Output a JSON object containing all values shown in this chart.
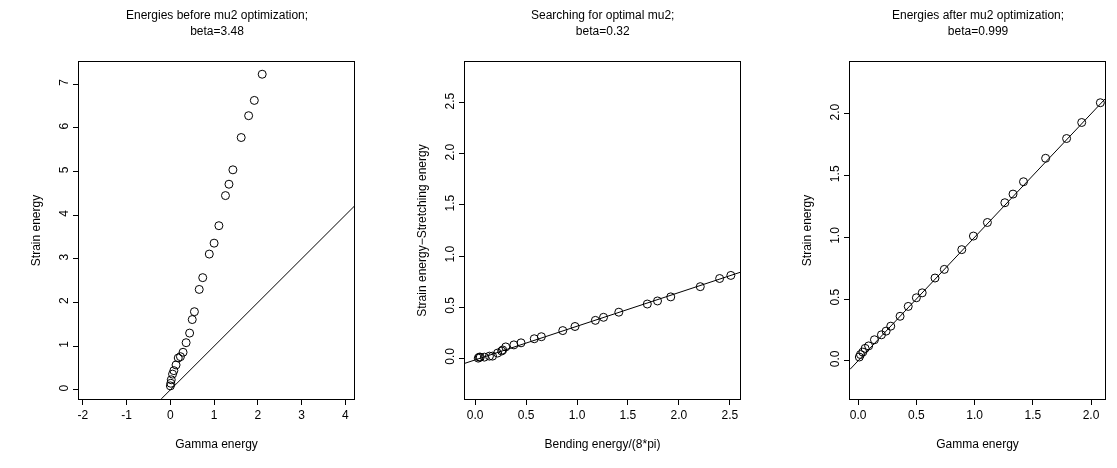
{
  "chart_data": [
    {
      "type": "scatter",
      "title": "Energies before mu2 optimization;\nbeta=3.48",
      "xlabel": "Gamma energy",
      "ylabel": "Strain energy",
      "xlim": [
        -2.09,
        4.2
      ],
      "ylim": [
        -0.21,
        7.51
      ],
      "xticks": [
        -2,
        -1,
        0,
        1,
        2,
        3,
        4
      ],
      "yticks": [
        0,
        1,
        2,
        3,
        4,
        5,
        6,
        7
      ],
      "series": [
        {
          "color": "#000000",
          "marker": "circle",
          "x": [
            2.1,
            1.92,
            1.79,
            1.62,
            1.43,
            1.34,
            1.26,
            1.11,
            1.0,
            0.89,
            0.74,
            0.66,
            0.55,
            0.5,
            0.44,
            0.36,
            0.29,
            0.23,
            0.18,
            0.13,
            0.08,
            0.05,
            0.02,
            0.01,
            0.0
          ],
          "values": [
            7.23,
            6.63,
            6.28,
            5.78,
            5.04,
            4.71,
            4.45,
            3.76,
            3.36,
            3.11,
            2.57,
            2.3,
            1.79,
            1.61,
            1.3,
            1.08,
            0.86,
            0.76,
            0.73,
            0.57,
            0.44,
            0.36,
            0.23,
            0.15,
            0.09
          ]
        },
        {
          "type": "line",
          "color": "#000000",
          "x": [
            -0.21,
            4.2
          ],
          "values": [
            -0.21,
            4.2
          ]
        }
      ]
    },
    {
      "type": "scatter",
      "title": "Searching for optimal mu2;\nbeta=0.32",
      "xlabel": "Bending energy/(8*pi)",
      "ylabel": "Strain energy−Stretching energy",
      "xlim": [
        -0.1,
        2.6
      ],
      "ylim": [
        -0.4,
        2.9
      ],
      "xticks": [
        {
          "value": 0,
          "label": "0.0"
        },
        0.5,
        {
          "value": 1,
          "label": "1.0"
        },
        1.5,
        {
          "value": 2,
          "label": "2.0"
        },
        2.5
      ],
      "yticks": [
        {
          "value": 0,
          "label": "0.0"
        },
        0.5,
        {
          "value": 1,
          "label": "1.0"
        },
        1.5,
        {
          "value": 2,
          "label": "2.0"
        },
        2.5
      ],
      "series": [
        {
          "color": "#000000",
          "marker": "circle",
          "x": [
            2.51,
            2.4,
            2.21,
            1.92,
            1.79,
            1.69,
            1.41,
            1.26,
            1.18,
            0.98,
            0.86,
            0.65,
            0.58,
            0.45,
            0.38,
            0.3,
            0.27,
            0.26,
            0.22,
            0.17,
            0.14,
            0.09,
            0.05,
            0.03,
            0.04
          ],
          "values": [
            0.81,
            0.78,
            0.7,
            0.6,
            0.56,
            0.53,
            0.45,
            0.4,
            0.37,
            0.31,
            0.27,
            0.21,
            0.19,
            0.15,
            0.13,
            0.11,
            0.08,
            0.07,
            0.05,
            0.02,
            0.02,
            0.01,
            0.01,
            0.0,
            0.01
          ]
        },
        {
          "type": "line",
          "color": "#000000",
          "x": [
            -0.1,
            2.6
          ],
          "values": [
            -0.05,
            0.84
          ]
        }
      ]
    },
    {
      "type": "scatter",
      "title": "Energies after mu2 optimization;\nbeta=0.999",
      "xlabel": "Gamma energy",
      "ylabel": "Strain energy",
      "xlim": [
        -0.07,
        2.12
      ],
      "ylim": [
        -0.31,
        2.42
      ],
      "xticks": [
        {
          "value": 0,
          "label": "0.0"
        },
        0.5,
        {
          "value": 1,
          "label": "1.0"
        },
        1.5,
        {
          "value": 2,
          "label": "2.0"
        }
      ],
      "yticks": [
        {
          "value": 0,
          "label": "0.0"
        },
        0.5,
        {
          "value": 1,
          "label": "1.0"
        },
        1.5,
        {
          "value": 2,
          "label": "2.0"
        }
      ],
      "series": [
        {
          "color": "#000000",
          "marker": "circle",
          "x": [
            2.08,
            1.92,
            1.79,
            1.61,
            1.42,
            1.33,
            1.26,
            1.11,
            0.99,
            0.89,
            0.74,
            0.66,
            0.55,
            0.5,
            0.43,
            0.36,
            0.28,
            0.24,
            0.2,
            0.14,
            0.09,
            0.06,
            0.04,
            0.02,
            0.01
          ],
          "values": [
            2.09,
            1.93,
            1.8,
            1.64,
            1.45,
            1.35,
            1.28,
            1.12,
            1.01,
            0.9,
            0.74,
            0.67,
            0.55,
            0.51,
            0.44,
            0.36,
            0.28,
            0.24,
            0.21,
            0.17,
            0.12,
            0.1,
            0.07,
            0.05,
            0.03
          ]
        },
        {
          "type": "line",
          "color": "#000000",
          "x": [
            -0.07,
            2.12
          ],
          "values": [
            -0.07,
            2.12
          ]
        }
      ]
    }
  ]
}
